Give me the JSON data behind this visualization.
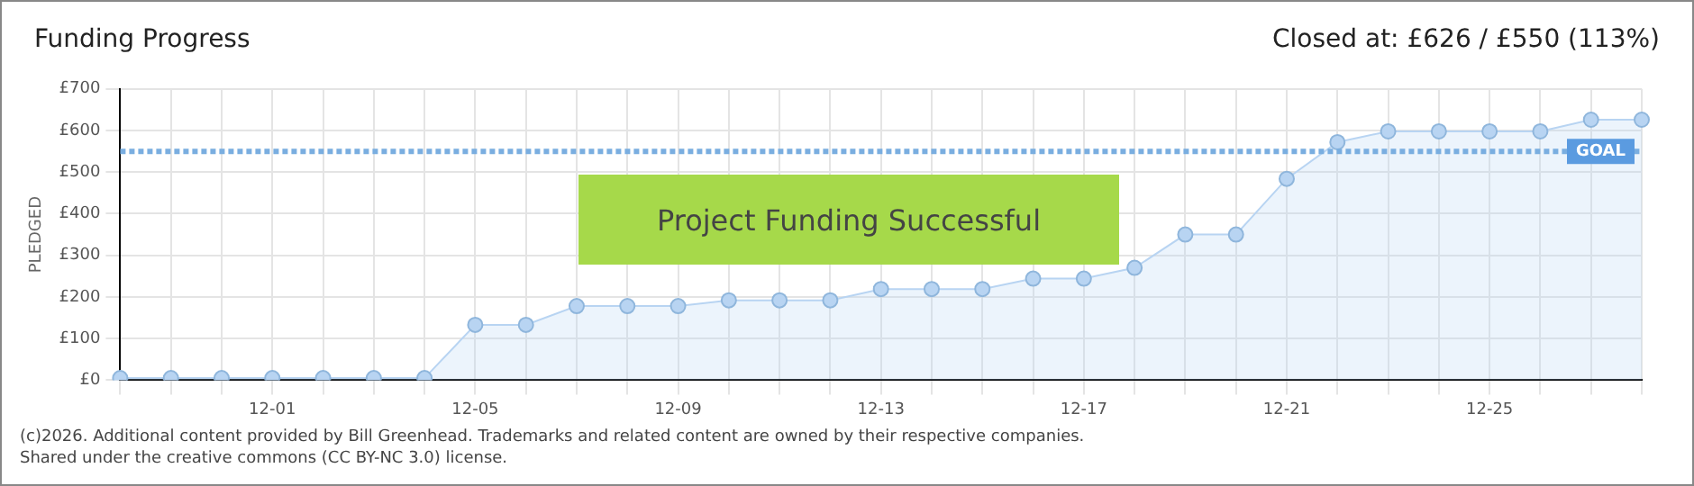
{
  "chart_data": {
    "type": "area",
    "title": "Funding Progress",
    "subtitle": "Closed at:  £626 / £550 (113%)",
    "ylabel": "PLEDGED",
    "categories": [
      null,
      null,
      null,
      "12-01",
      null,
      null,
      null,
      "12-05",
      null,
      null,
      null,
      "12-09",
      null,
      null,
      null,
      "12-13",
      null,
      null,
      null,
      "12-17",
      null,
      null,
      null,
      "12-21",
      null,
      null,
      null,
      "12-25",
      null,
      null,
      null
    ],
    "series": [
      {
        "color": "#b8d4f2",
        "values": [
          5,
          5,
          5,
          5,
          5,
          5,
          5,
          133,
          133,
          178,
          178,
          178,
          192,
          192,
          192,
          219,
          219,
          219,
          244,
          244,
          270,
          350,
          350,
          484,
          572,
          598,
          598,
          598,
          598,
          626,
          626
        ]
      }
    ],
    "ylim": [
      0,
      700
    ],
    "yticks": [
      {
        "value": 0,
        "label": "£0"
      },
      {
        "value": 100,
        "label": "£100"
      },
      {
        "value": 200,
        "label": "£200"
      },
      {
        "value": 300,
        "label": "£300"
      },
      {
        "value": 400,
        "label": "£400"
      },
      {
        "value": 500,
        "label": "£500"
      },
      {
        "value": 600,
        "label": "£600"
      },
      {
        "value": 700,
        "label": "£700"
      }
    ],
    "ref_lines": [
      {
        "axis": "y",
        "value": 550,
        "label": "GOAL",
        "color": "#7aaee0",
        "line_style": "dotted"
      }
    ],
    "annotations": [
      "Project Funding Successful",
      "(c)2026. Additional content provided by Bill Greenhead. Trademarks and related content are owned by their respective companies.",
      "Shared under the creative commons (CC BY-NC 3.0) license."
    ],
    "grid": true,
    "marker": "circle",
    "legend": false
  }
}
